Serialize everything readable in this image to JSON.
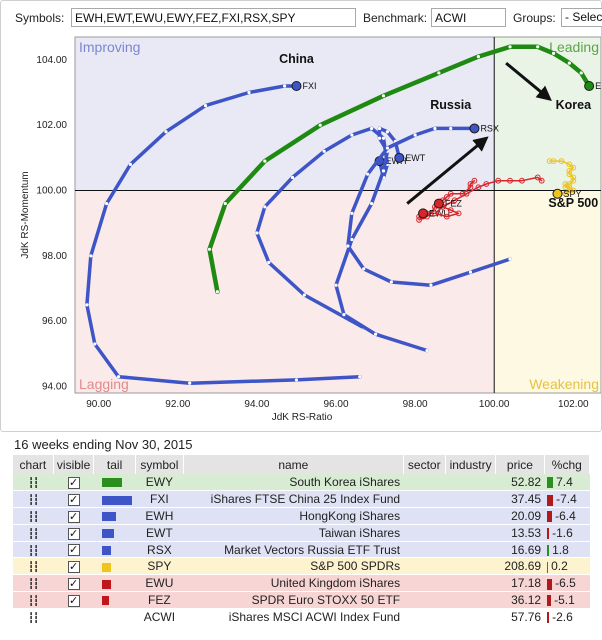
{
  "controls": {
    "symbols_label": "Symbols:",
    "symbols_value": "EWH,EWT,EWU,EWY,FEZ,FXI,RSX,SPY",
    "benchmark_label": "Benchmark:",
    "benchmark_value": "ACWI",
    "groups_label": "Groups:",
    "groups_value": "- Select"
  },
  "chart_data": {
    "type": "scatter",
    "subtype": "relative-rotation-graph",
    "xlabel": "JdK RS-Ratio",
    "ylabel": "JdK RS-Momentum",
    "xlim": [
      89.4,
      102.7
    ],
    "ylim": [
      93.8,
      104.7
    ],
    "xticks": [
      90,
      92,
      94,
      96,
      98,
      100,
      102
    ],
    "xtick_labels": [
      "90.00",
      "92.00",
      "94.00",
      "96.00",
      "98.00",
      "100.00",
      "102.00"
    ],
    "yticks": [
      94,
      96,
      98,
      100,
      102,
      104
    ],
    "ytick_labels": [
      "94.00",
      "96.00",
      "98.00",
      "100.00",
      "102.00",
      "104.00"
    ],
    "center": [
      100,
      100
    ],
    "quadrants": [
      {
        "name": "Improving",
        "position": "top-left",
        "bg": "#e9e9f6",
        "color": "#7b86cf"
      },
      {
        "name": "Leading",
        "position": "top-right",
        "bg": "#e9f3e6",
        "color": "#5ea34a"
      },
      {
        "name": "Lagging",
        "position": "bottom-left",
        "bg": "#fbeaea",
        "color": "#e38a8a"
      },
      {
        "name": "Weakening",
        "position": "bottom-right",
        "bg": "#fdf9e3",
        "color": "#e6c23e"
      }
    ],
    "annotations": [
      "China",
      "Russia",
      "Korea",
      "S&P 500"
    ],
    "series": [
      {
        "name": "EWY",
        "color": "#1e8a12",
        "width": 4.5,
        "x": [
          93.0,
          92.8,
          93.2,
          94.2,
          95.6,
          97.2,
          98.6,
          99.6,
          100.4,
          101.1,
          101.5,
          101.9,
          102.2,
          102.4
        ],
        "y": [
          96.9,
          98.2,
          99.6,
          100.9,
          102.0,
          102.9,
          103.6,
          104.1,
          104.4,
          104.4,
          104.2,
          103.9,
          103.6,
          103.2
        ]
      },
      {
        "name": "FXI",
        "color": "#3d55c6",
        "width": 3.5,
        "x": [
          96.6,
          95.0,
          92.3,
          90.5,
          89.9,
          89.7,
          89.8,
          90.2,
          90.8,
          91.7,
          92.7,
          93.8,
          94.7,
          95.0
        ],
        "y": [
          94.3,
          94.2,
          94.1,
          94.3,
          95.3,
          96.5,
          98.0,
          99.6,
          100.8,
          101.8,
          102.6,
          103.0,
          103.2,
          103.2
        ]
      },
      {
        "name": "EWH",
        "color": "#3d55c6",
        "width": 3.5,
        "x": [
          96.7,
          95.2,
          94.3,
          94.0,
          94.2,
          94.9,
          95.7,
          96.4,
          96.9,
          97.2,
          97.3,
          97.2,
          97.1
        ],
        "y": [
          95.8,
          96.8,
          97.8,
          98.7,
          99.5,
          100.4,
          101.2,
          101.7,
          101.9,
          101.6,
          100.8,
          100.4,
          100.9
        ]
      },
      {
        "name": "EWT",
        "color": "#3d55c6",
        "width": 3.5,
        "x": [
          98.3,
          97.0,
          96.2,
          96.0,
          96.4,
          96.9,
          97.2,
          97.3,
          97.1,
          97.1,
          97.3,
          97.5,
          97.6
        ],
        "y": [
          95.1,
          95.6,
          96.2,
          97.1,
          98.5,
          99.6,
          100.6,
          101.2,
          101.6,
          101.9,
          101.8,
          101.5,
          101.0
        ]
      },
      {
        "name": "RSX",
        "color": "#3d55c6",
        "width": 3.5,
        "x": [
          100.4,
          99.4,
          98.4,
          97.4,
          96.7,
          96.3,
          96.4,
          96.8,
          97.3,
          98.0,
          98.5,
          98.9,
          99.5
        ],
        "y": [
          97.9,
          97.5,
          97.1,
          97.2,
          97.6,
          98.3,
          99.3,
          100.5,
          101.3,
          101.7,
          101.9,
          101.9,
          101.9
        ]
      },
      {
        "name": "SPY",
        "color": "#efc41f",
        "width": 1.5,
        "x": [
          101.4,
          101.5,
          101.7,
          101.9,
          102.0,
          101.9,
          101.9,
          102.0,
          102.0,
          101.9,
          101.8,
          101.8,
          101.9,
          102.0,
          101.8,
          101.9,
          101.8,
          101.6
        ],
        "y": [
          100.9,
          100.9,
          100.9,
          100.8,
          100.7,
          100.6,
          100.5,
          100.4,
          100.3,
          100.2,
          100.2,
          100.1,
          100.1,
          100.0,
          99.9,
          100.0,
          99.9,
          99.9
        ]
      },
      {
        "name": "EWU",
        "color": "#d8242b",
        "width": 1.5,
        "x": [
          99.5,
          99.4,
          99.4,
          99.2,
          98.9,
          98.8,
          98.7,
          98.6,
          98.5,
          98.4,
          98.3,
          98.1,
          98.2,
          98.3,
          98.2,
          98.1,
          98.2,
          98.2
        ],
        "y": [
          100.3,
          100.2,
          100.1,
          99.9,
          99.9,
          99.8,
          99.7,
          99.6,
          99.5,
          99.3,
          99.2,
          99.1,
          99.2,
          99.3,
          99.2,
          99.2,
          99.3,
          99.3
        ]
      },
      {
        "name": "FEZ",
        "color": "#d8242b",
        "width": 1.5,
        "x": [
          101.2,
          101.1,
          100.7,
          100.4,
          100.1,
          99.8,
          99.6,
          99.3,
          99.0,
          98.7,
          98.5,
          98.8,
          99.1,
          98.9,
          98.7,
          98.6
        ],
        "y": [
          100.3,
          100.4,
          100.3,
          100.3,
          100.3,
          100.2,
          100.1,
          99.9,
          99.7,
          99.5,
          99.3,
          99.2,
          99.3,
          99.4,
          99.5,
          99.6
        ]
      }
    ],
    "arrows": [
      {
        "from": [
          97.8,
          99.6
        ],
        "to": [
          99.8,
          101.6
        ]
      },
      {
        "from": [
          100.3,
          103.9
        ],
        "to": [
          101.4,
          102.8
        ]
      }
    ]
  },
  "summary": {
    "caption": "16 weeks ending Nov 30, 2015",
    "headers": [
      "chart",
      "visible",
      "tail",
      "symbol",
      "name",
      "sector",
      "industry",
      "price",
      "%chg"
    ],
    "rows": [
      {
        "symbol": "EWY",
        "name": "South Korea iShares",
        "price": "52.82",
        "chg": "7.4",
        "tail_color": "#2a8f1f",
        "tail_len": 20,
        "chg_color": "#2a8f1f",
        "chg_len": 6,
        "row_bg": "#d7ecd2"
      },
      {
        "symbol": "FXI",
        "name": "iShares FTSE China 25 Index Fund",
        "price": "37.45",
        "chg": "-7.4",
        "tail_color": "#3d55c6",
        "tail_len": 30,
        "chg_color": "#b01a1a",
        "chg_len": 6,
        "row_bg": "#dfe2f5"
      },
      {
        "symbol": "EWH",
        "name": "HongKong iShares",
        "price": "20.09",
        "chg": "-6.4",
        "tail_color": "#3d55c6",
        "tail_len": 14,
        "chg_color": "#b01a1a",
        "chg_len": 5,
        "row_bg": "#dfe2f5"
      },
      {
        "symbol": "EWT",
        "name": "Taiwan iShares",
        "price": "13.53",
        "chg": "-1.6",
        "tail_color": "#3d55c6",
        "tail_len": 12,
        "chg_color": "#b01a1a",
        "chg_len": 2,
        "row_bg": "#dfe2f5"
      },
      {
        "symbol": "RSX",
        "name": "Market Vectors Russia ETF Trust",
        "price": "16.69",
        "chg": "1.8",
        "tail_color": "#3d55c6",
        "tail_len": 9,
        "chg_color": "#2a8f1f",
        "chg_len": 2,
        "row_bg": "#dfe2f5"
      },
      {
        "symbol": "SPY",
        "name": "S&P 500 SPDRs",
        "price": "208.69",
        "chg": "0.2",
        "tail_color": "#efc41f",
        "tail_len": 9,
        "chg_color": "#2a8f1f",
        "chg_len": 1,
        "row_bg": "#fdf3cf"
      },
      {
        "symbol": "EWU",
        "name": "United Kingdom iShares",
        "price": "17.18",
        "chg": "-6.5",
        "tail_color": "#c0171d",
        "tail_len": 9,
        "chg_color": "#b01a1a",
        "chg_len": 5,
        "row_bg": "#f7d5d5"
      },
      {
        "symbol": "FEZ",
        "name": "SPDR Euro STOXX 50 ETF",
        "price": "36.12",
        "chg": "-5.1",
        "tail_color": "#c0171d",
        "tail_len": 7,
        "chg_color": "#b01a1a",
        "chg_len": 4,
        "row_bg": "#f7d5d5"
      },
      {
        "symbol": "ACWI",
        "name": "iShares MSCI ACWI Index Fund",
        "price": "57.76",
        "chg": "-2.6",
        "tail_color": "",
        "tail_len": 0,
        "chg_color": "#b01a1a",
        "chg_len": 2,
        "row_bg": "#ffffff",
        "no_checkbox": true
      }
    ]
  }
}
